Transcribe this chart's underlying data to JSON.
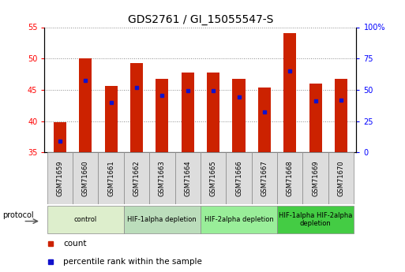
{
  "title": "GDS2761 / GI_15055547-S",
  "samples": [
    "GSM71659",
    "GSM71660",
    "GSM71661",
    "GSM71662",
    "GSM71663",
    "GSM71664",
    "GSM71665",
    "GSM71666",
    "GSM71667",
    "GSM71668",
    "GSM71669",
    "GSM71670"
  ],
  "bar_heights": [
    39.8,
    50.0,
    45.6,
    49.3,
    46.8,
    47.8,
    47.8,
    46.8,
    45.3,
    54.0,
    46.0,
    46.8
  ],
  "percentile_y": [
    36.8,
    46.5,
    43.0,
    45.4,
    44.1,
    44.8,
    44.8,
    43.8,
    41.5,
    48.0,
    43.2,
    43.4
  ],
  "bar_color": "#CC2200",
  "percentile_color": "#1111CC",
  "ylim_left": [
    35,
    55
  ],
  "ylim_right": [
    0,
    100
  ],
  "yticks_left": [
    35,
    40,
    45,
    50,
    55
  ],
  "yticks_right": [
    0,
    25,
    50,
    75,
    100
  ],
  "ytick_labels_right": [
    "0",
    "25",
    "50",
    "75",
    "100%"
  ],
  "groups": [
    {
      "label": "control",
      "start": 0,
      "end": 3,
      "color": "#DDEECC"
    },
    {
      "label": "HIF-1alpha depletion",
      "start": 3,
      "end": 6,
      "color": "#BBDDBB"
    },
    {
      "label": "HIF-2alpha depletion",
      "start": 6,
      "end": 9,
      "color": "#99EE99"
    },
    {
      "label": "HIF-1alpha HIF-2alpha\ndepletion",
      "start": 9,
      "end": 12,
      "color": "#44CC44"
    }
  ],
  "protocol_label": "protocol",
  "legend_count_label": "count",
  "legend_pct_label": "percentile rank within the sample",
  "background_color": "#ffffff",
  "plot_bg_color": "#ffffff",
  "grid_color": "#888888",
  "title_fontsize": 10,
  "tick_fontsize": 7,
  "bar_width": 0.5
}
